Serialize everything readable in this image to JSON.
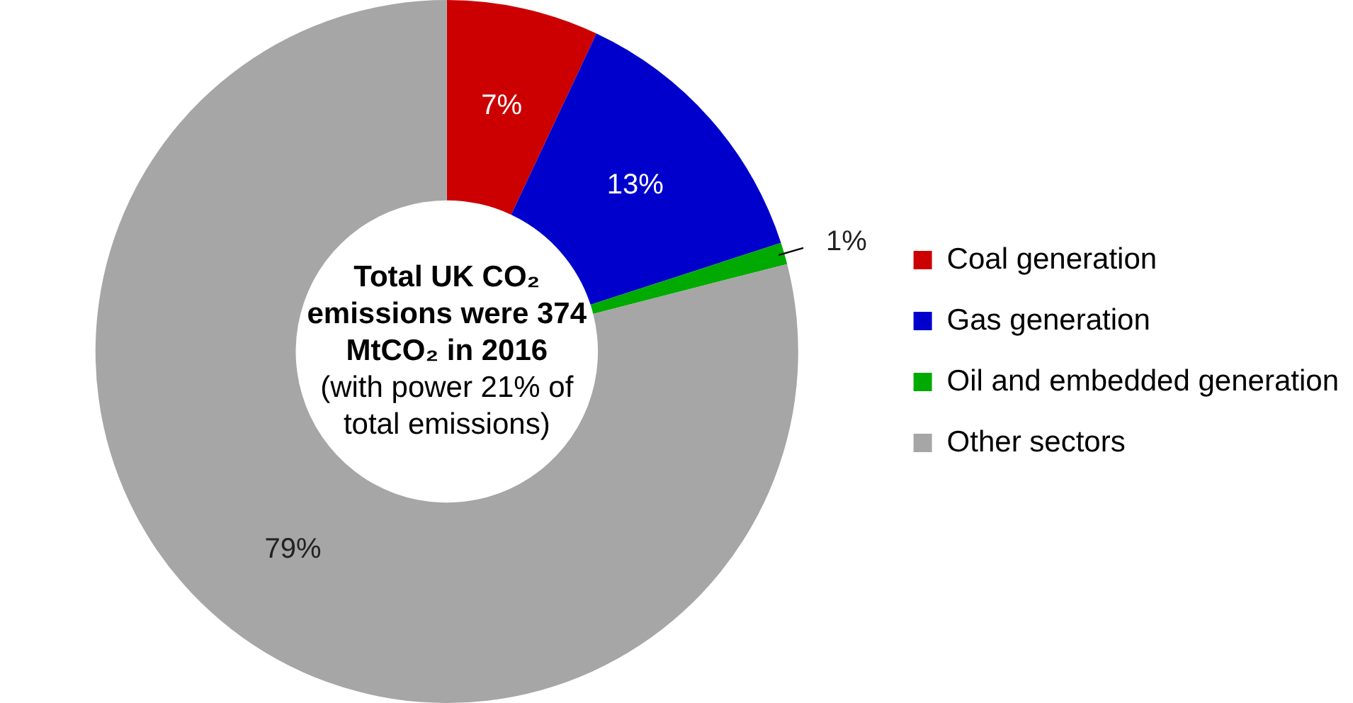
{
  "chart_data": {
    "type": "donut",
    "categories": [
      "Coal generation",
      "Gas generation",
      "Oil and embedded generation",
      "Other sectors"
    ],
    "values": [
      7,
      13,
      1,
      79
    ],
    "colors": [
      "#cc0000",
      "#0000cc",
      "#00aa00",
      "#a6a6a6"
    ],
    "value_labels": [
      "7%",
      "13%",
      "1%",
      "79%"
    ],
    "legend": "right",
    "annotations": [
      "Total UK CO₂ emissions were 374 MtCO₂ in 2016",
      "(with power 21% of total emissions)"
    ]
  }
}
